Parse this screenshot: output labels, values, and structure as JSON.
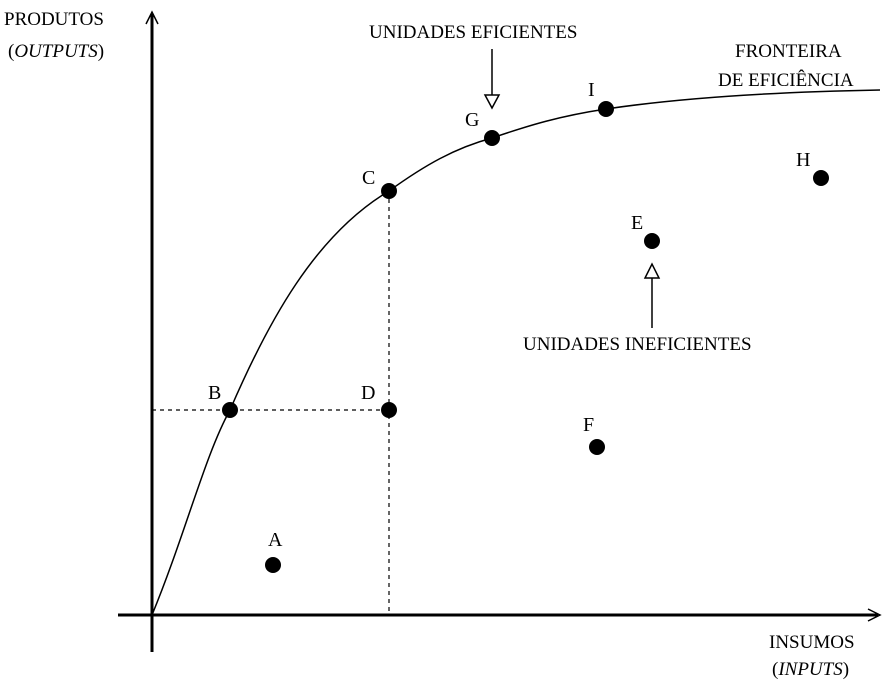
{
  "y_axis": {
    "title": "PRODUTOS",
    "subtitle_open": "(",
    "subtitle_italic": "OUTPUTS",
    "subtitle_close": ")"
  },
  "x_axis": {
    "title": "INSUMOS",
    "subtitle_open": "(",
    "subtitle_italic": "INPUTS",
    "subtitle_close": ")"
  },
  "frontier": {
    "label_line1": "FRONTEIRA",
    "label_line2": "DE EFICIÊNCIA"
  },
  "annotations": {
    "efficient_units": "UNIDADES EFICIENTES",
    "inefficient_units": "UNIDADES INEFICIENTES"
  },
  "points": {
    "A": "A",
    "B": "B",
    "C": "C",
    "D": "D",
    "E": "E",
    "F": "F",
    "G": "G",
    "H": "H",
    "I": "I"
  },
  "colors": {
    "ink": "#000000",
    "background": "#ffffff"
  }
}
